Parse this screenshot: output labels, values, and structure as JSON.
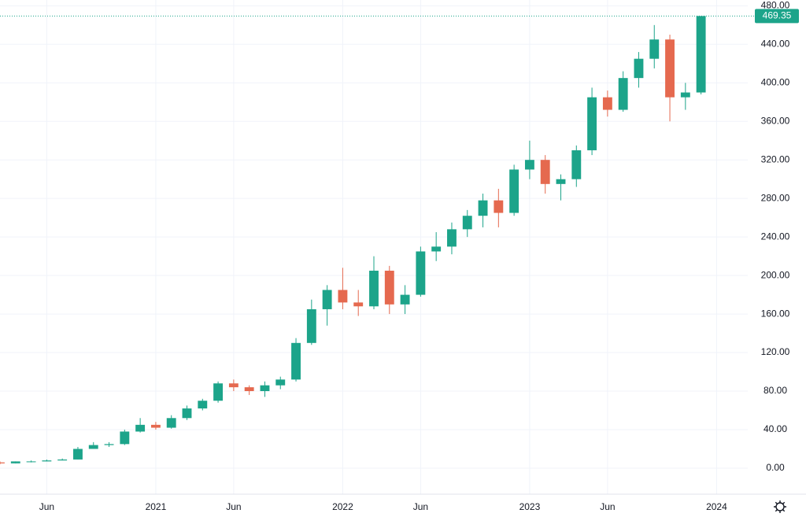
{
  "chart_data": {
    "type": "candlestick",
    "up_color": "#1ca48a",
    "down_color": "#e5694f",
    "grid": true,
    "x": [
      "2020-03",
      "2020-04",
      "2020-05",
      "2020-06",
      "2020-07",
      "2020-08",
      "2020-09",
      "2020-10",
      "2020-11",
      "2020-12",
      "2021-01",
      "2021-02",
      "2021-03",
      "2021-04",
      "2021-05",
      "2021-06",
      "2021-07",
      "2021-08",
      "2021-09",
      "2021-10",
      "2021-11",
      "2021-12",
      "2022-01",
      "2022-02",
      "2022-03",
      "2022-04",
      "2022-05",
      "2022-06",
      "2022-07",
      "2022-08",
      "2022-09",
      "2022-10",
      "2022-11",
      "2022-12",
      "2023-01",
      "2023-02",
      "2023-03",
      "2023-04",
      "2023-05",
      "2023-06",
      "2023-07",
      "2023-08",
      "2023-09",
      "2023-10",
      "2023-11",
      "2023-12"
    ],
    "open": [
      6,
      5,
      7,
      7,
      8,
      9,
      20,
      24,
      25,
      38,
      45,
      42,
      52,
      62,
      70,
      88,
      84,
      80,
      86,
      92,
      130,
      165,
      185,
      172,
      168,
      205,
      170,
      180,
      225,
      230,
      248,
      262,
      278,
      265,
      310,
      320,
      295,
      300,
      330,
      385,
      372,
      405,
      425,
      445,
      385,
      390
    ],
    "high": [
      7,
      7,
      8,
      9,
      10,
      22,
      27,
      27,
      40,
      52,
      48,
      55,
      65,
      72,
      90,
      92,
      86,
      90,
      95,
      135,
      175,
      190,
      208,
      185,
      220,
      210,
      190,
      230,
      245,
      255,
      268,
      285,
      290,
      315,
      340,
      325,
      305,
      335,
      395,
      392,
      412,
      432,
      460,
      450,
      400,
      469.35
    ],
    "low": [
      4,
      5,
      6,
      7,
      8,
      9,
      20,
      22,
      24,
      37,
      40,
      41,
      50,
      60,
      68,
      80,
      76,
      74,
      82,
      90,
      128,
      148,
      165,
      158,
      165,
      160,
      160,
      178,
      215,
      222,
      240,
      250,
      250,
      262,
      300,
      285,
      278,
      292,
      325,
      365,
      370,
      395,
      415,
      360,
      372,
      388
    ],
    "close": [
      5,
      7,
      7,
      8,
      9,
      20,
      24,
      25,
      38,
      45,
      42,
      52,
      62,
      70,
      88,
      84,
      80,
      86,
      92,
      130,
      165,
      185,
      172,
      168,
      205,
      170,
      180,
      225,
      230,
      248,
      262,
      278,
      265,
      310,
      320,
      295,
      300,
      330,
      385,
      372,
      405,
      425,
      445,
      385,
      390,
      469.35
    ],
    "last_price": 469.35,
    "xlim": [
      "2020-03",
      "2024-03"
    ],
    "xticks": [
      {
        "value": "2020-06",
        "label": "Jun"
      },
      {
        "value": "2021-01",
        "label": "2021"
      },
      {
        "value": "2021-06",
        "label": "Jun"
      },
      {
        "value": "2022-01",
        "label": "2022"
      },
      {
        "value": "2022-06",
        "label": "Jun"
      },
      {
        "value": "2023-01",
        "label": "2023"
      },
      {
        "value": "2023-06",
        "label": "Jun"
      },
      {
        "value": "2024-01",
        "label": "2024"
      }
    ],
    "ylim": [
      -27,
      486
    ],
    "yticks": [
      {
        "value": 0,
        "label": "0.00"
      },
      {
        "value": 40,
        "label": "40.00"
      },
      {
        "value": 80,
        "label": "80.00"
      },
      {
        "value": 120,
        "label": "120.00"
      },
      {
        "value": 160,
        "label": "160.00"
      },
      {
        "value": 200,
        "label": "200.00"
      },
      {
        "value": 240,
        "label": "240.00"
      },
      {
        "value": 280,
        "label": "280.00"
      },
      {
        "value": 320,
        "label": "320.00"
      },
      {
        "value": 360,
        "label": "360.00"
      },
      {
        "value": 400,
        "label": "400.00"
      },
      {
        "value": 440,
        "label": "440.00"
      },
      {
        "value": 480,
        "label": "480.00"
      }
    ]
  }
}
